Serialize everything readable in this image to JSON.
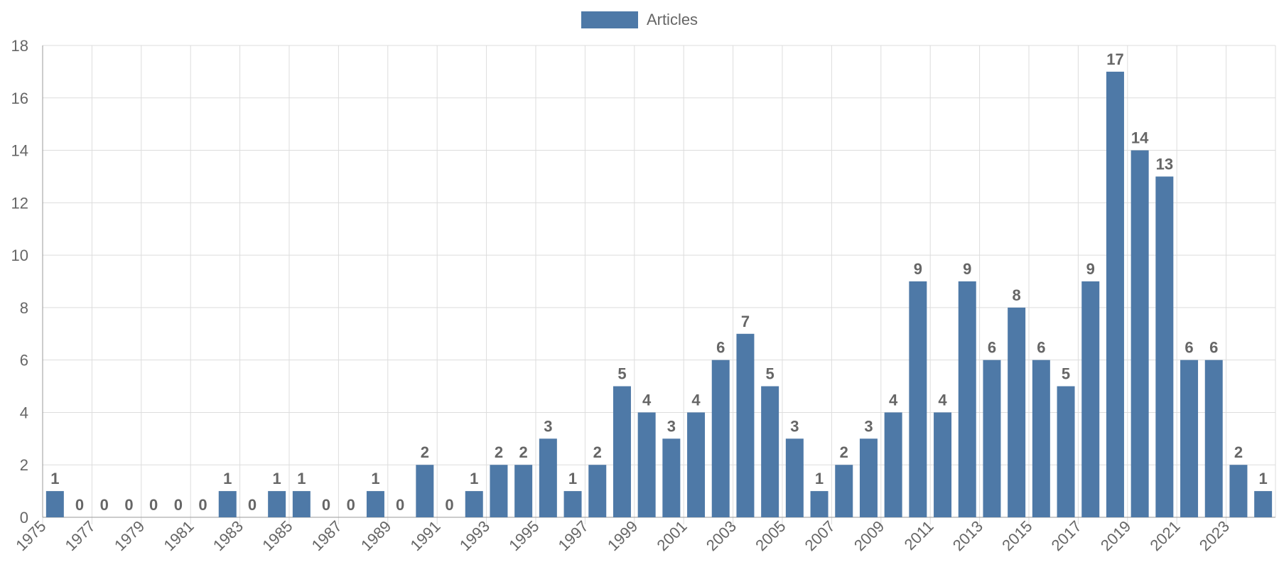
{
  "chart_data": {
    "type": "bar",
    "categories": [
      "1975",
      "1976",
      "1977",
      "1978",
      "1979",
      "1980",
      "1981",
      "1982",
      "1983",
      "1984",
      "1985",
      "1986",
      "1987",
      "1988",
      "1989",
      "1990",
      "1991",
      "1992",
      "1993",
      "1994",
      "1995",
      "1996",
      "1997",
      "1998",
      "1999",
      "2000",
      "2001",
      "2002",
      "2003",
      "2004",
      "2005",
      "2006",
      "2007",
      "2008",
      "2009",
      "2010",
      "2011",
      "2012",
      "2013",
      "2014",
      "2015",
      "2016",
      "2017",
      "2018",
      "2019",
      "2020",
      "2021",
      "2022",
      "2023",
      "2024"
    ],
    "x_tick_labels": [
      "1975",
      "1977",
      "1979",
      "1981",
      "1983",
      "1985",
      "1987",
      "1989",
      "1991",
      "1993",
      "1995",
      "1997",
      "1999",
      "2001",
      "2003",
      "2005",
      "2007",
      "2009",
      "2011",
      "2013",
      "2015",
      "2017",
      "2019",
      "2021",
      "2023"
    ],
    "series": [
      {
        "name": "Articles",
        "values": [
          1,
          0,
          0,
          0,
          0,
          0,
          0,
          1,
          0,
          1,
          1,
          0,
          0,
          1,
          0,
          2,
          0,
          1,
          2,
          2,
          3,
          1,
          2,
          5,
          4,
          3,
          4,
          6,
          7,
          5,
          3,
          1,
          2,
          3,
          4,
          9,
          4,
          9,
          6,
          8,
          6,
          5,
          9,
          17,
          14,
          13,
          6,
          6,
          2,
          1
        ]
      }
    ],
    "y_ticks": [
      0,
      2,
      4,
      6,
      8,
      10,
      12,
      14,
      16,
      18
    ],
    "ylim": [
      0,
      18
    ],
    "title": "",
    "xlabel": "",
    "ylabel": "",
    "grid": true,
    "legend_position": "top-center",
    "data_labels": true,
    "colors": {
      "bar": "#4e79a7",
      "label_text": "#666666",
      "tick_text": "#666666",
      "grid": "#dddddd",
      "axis": "#999999"
    }
  }
}
